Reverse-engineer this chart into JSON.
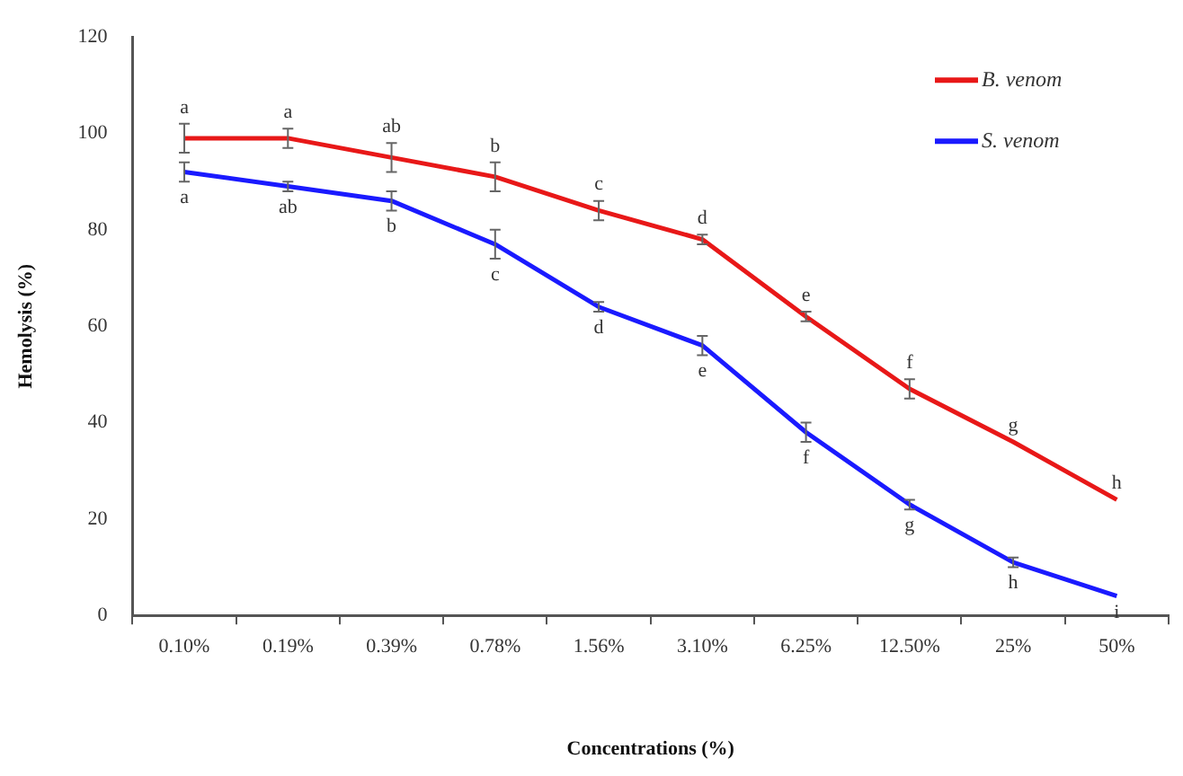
{
  "chart_data": {
    "type": "line",
    "xlabel": "Concentrations (%)",
    "ylabel": "Hemolysis (%)",
    "categories": [
      "0.10%",
      "0.19%",
      "0.39%",
      "0.78%",
      "1.56%",
      "3.10%",
      "6.25%",
      "12.50%",
      "25%",
      "50%"
    ],
    "series": [
      {
        "name": "B. venom",
        "color": "#e81818",
        "values": [
          99,
          99,
          95,
          91,
          84,
          78,
          62,
          47,
          36,
          24
        ],
        "errors": [
          3,
          2,
          3,
          3,
          2,
          1,
          1,
          2,
          null,
          null
        ]
      },
      {
        "name": "S. venom",
        "color": "#1a1aff",
        "values": [
          92,
          89,
          86,
          77,
          64,
          56,
          38,
          23,
          11,
          4
        ],
        "errors": [
          2,
          1,
          2,
          3,
          1,
          2,
          2,
          1,
          1,
          null
        ]
      }
    ],
    "ylim": [
      0,
      120
    ],
    "yticks": [
      0,
      20,
      40,
      60,
      80,
      100,
      120
    ],
    "grid": false,
    "legend": "top right",
    "marker": "none",
    "line_style": "solid",
    "annotations": [
      {
        "text": "a",
        "x": "0.10%",
        "y": 99
      },
      {
        "text": "a",
        "x": "0.19%",
        "y": 99
      },
      {
        "text": "ab",
        "x": "0.39%",
        "y": 95
      },
      {
        "text": "b",
        "x": "0.78%",
        "y": 91
      },
      {
        "text": "c",
        "x": "1.56%",
        "y": 84
      },
      {
        "text": "d",
        "x": "3.10%",
        "y": 78
      },
      {
        "text": "e",
        "x": "6.25%",
        "y": 62
      },
      {
        "text": "f",
        "x": "12.50%",
        "y": 47
      },
      {
        "text": "g",
        "x": "25%",
        "y": 36
      },
      {
        "text": "h",
        "x": "50%",
        "y": 24
      },
      {
        "text": "a",
        "x": "0.10%",
        "y": 92
      },
      {
        "text": "ab",
        "x": "0.19%",
        "y": 89
      },
      {
        "text": "b",
        "x": "0.39%",
        "y": 86
      },
      {
        "text": "c",
        "x": "0.78%",
        "y": 77
      },
      {
        "text": "d",
        "x": "1.56%",
        "y": 64
      },
      {
        "text": "e",
        "x": "3.10%",
        "y": 56
      },
      {
        "text": "f",
        "x": "6.25%",
        "y": 38
      },
      {
        "text": "g",
        "x": "12.50%",
        "y": 23
      },
      {
        "text": "h",
        "x": "25%",
        "y": 11
      },
      {
        "text": "i",
        "x": "50%",
        "y": 4
      }
    ]
  }
}
